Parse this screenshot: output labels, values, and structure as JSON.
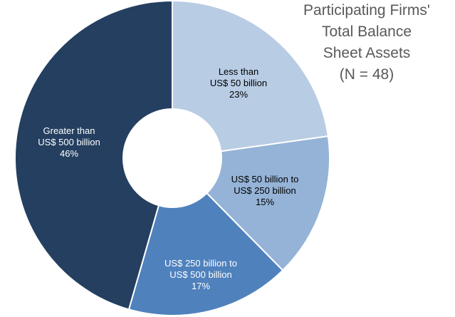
{
  "chart_data": {
    "type": "pie",
    "donut": true,
    "title_lines": [
      "Participating Firms'",
      "Total Balance",
      "Sheet Assets",
      "(N = 48)"
    ],
    "slices": [
      {
        "label_lines": [
          "Less than",
          "US$ 50 billion",
          "23%"
        ],
        "value": 23,
        "color": "#b8cce4",
        "label_color": "#000000"
      },
      {
        "label_lines": [
          "US$ 50 billion to",
          "US$ 250 billion",
          "15%"
        ],
        "value": 15,
        "color": "#95b3d7",
        "label_color": "#000000"
      },
      {
        "label_lines": [
          "US$ 250 billion to",
          "US$ 500 billion",
          "17%"
        ],
        "value": 17,
        "color": "#4f81bd",
        "label_color": "#ffffff"
      },
      {
        "label_lines": [
          "Greater than",
          "US$ 500 billion",
          "46%"
        ],
        "value": 46,
        "color": "#243f60",
        "label_color": "#ffffff"
      }
    ]
  }
}
